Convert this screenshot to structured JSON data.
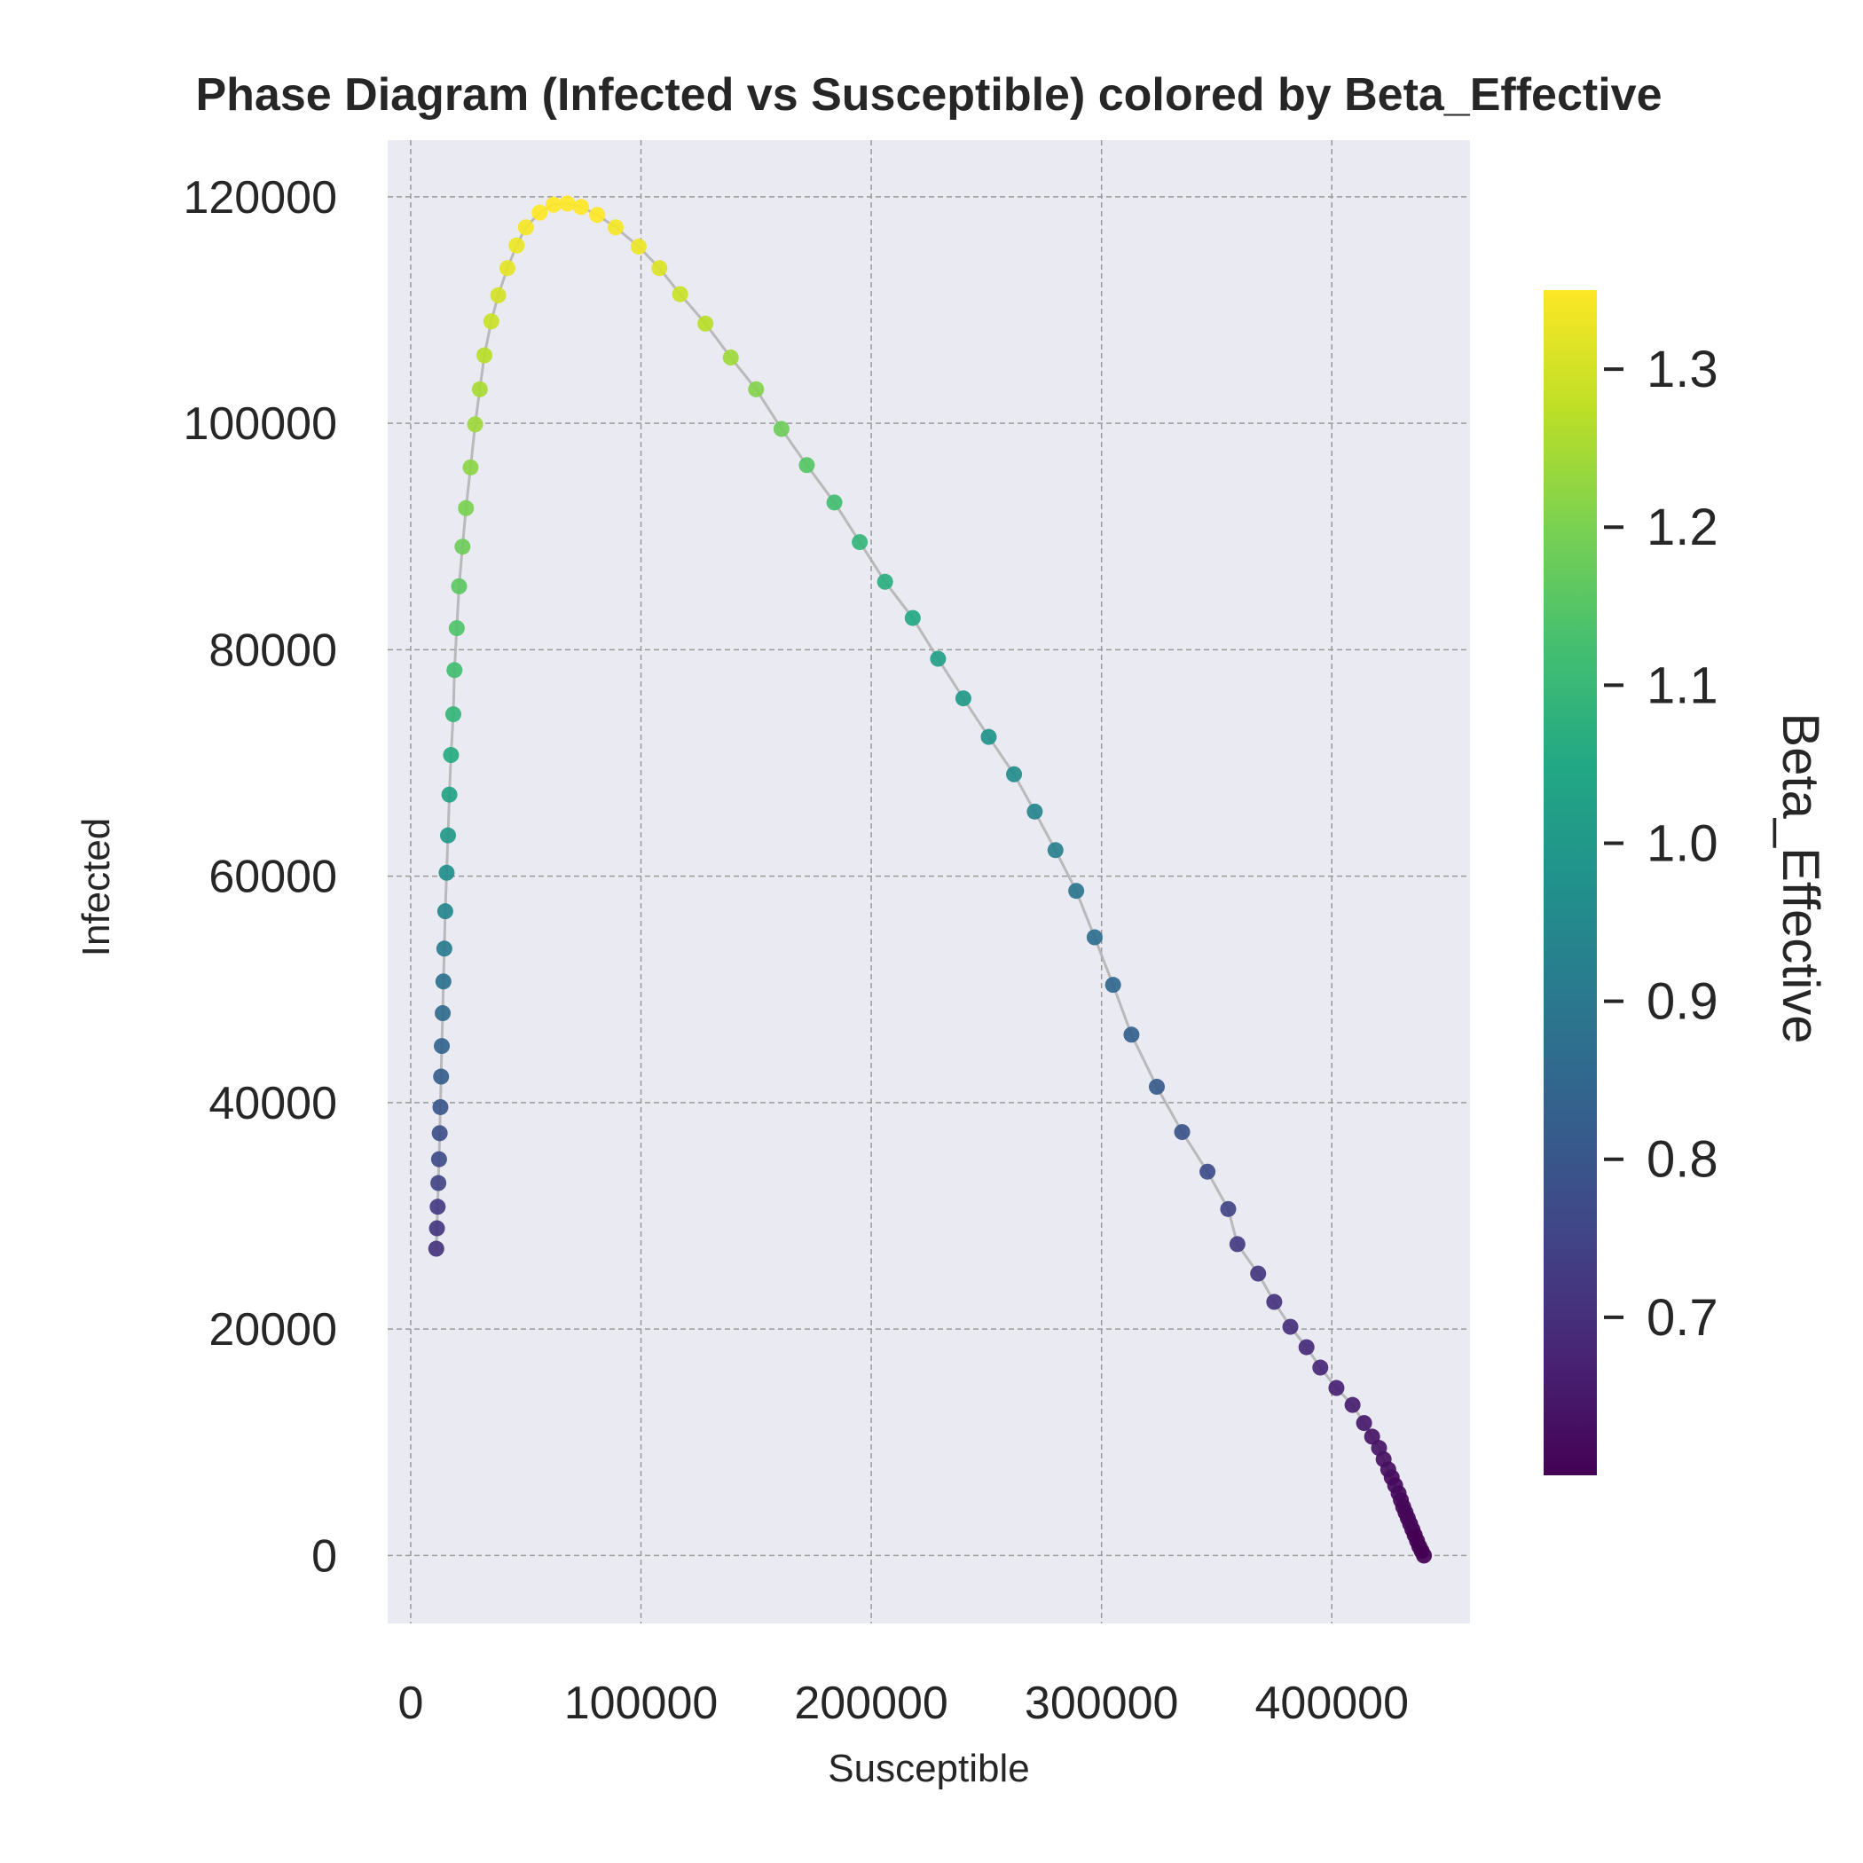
{
  "chart_data": {
    "type": "scatter",
    "title": "Phase Diagram (Infected vs Susceptible) colored by Beta_Effective",
    "xlabel": "Susceptible",
    "ylabel": "Infected",
    "xlim": [
      -10000,
      460000
    ],
    "ylim": [
      -6000,
      125000
    ],
    "xticks": [
      0,
      100000,
      200000,
      300000,
      400000
    ],
    "yticks": [
      0,
      20000,
      40000,
      60000,
      80000,
      100000,
      120000
    ],
    "grid": true,
    "line_color": "#b0b0b0",
    "colormap": "viridis",
    "colorbar": {
      "label": "Beta_Effective",
      "range": [
        0.6,
        1.35
      ],
      "ticks": [
        0.7,
        0.8,
        0.9,
        1.0,
        1.1,
        1.2,
        1.3
      ],
      "tick_labels": [
        "0.7",
        "0.8",
        "0.9",
        "1.0",
        "1.1",
        "1.2",
        "1.3"
      ]
    },
    "points": [
      [
        440000,
        0,
        0.6
      ],
      [
        439000,
        400,
        0.6
      ],
      [
        438000,
        800,
        0.6
      ],
      [
        437000,
        1300,
        0.6
      ],
      [
        436000,
        1800,
        0.6
      ],
      [
        435000,
        2300,
        0.6
      ],
      [
        434000,
        2800,
        0.61
      ],
      [
        433000,
        3300,
        0.61
      ],
      [
        432000,
        3800,
        0.61
      ],
      [
        431000,
        4300,
        0.61
      ],
      [
        430000,
        4900,
        0.61
      ],
      [
        429000,
        5500,
        0.62
      ],
      [
        427500,
        6200,
        0.62
      ],
      [
        426000,
        6900,
        0.62
      ],
      [
        424500,
        7600,
        0.63
      ],
      [
        422500,
        8500,
        0.63
      ],
      [
        420500,
        9500,
        0.64
      ],
      [
        417500,
        10500,
        0.64
      ],
      [
        414000,
        11700,
        0.65
      ],
      [
        409000,
        13300,
        0.66
      ],
      [
        402000,
        14800,
        0.67
      ],
      [
        395000,
        16600,
        0.68
      ],
      [
        389000,
        18400,
        0.69
      ],
      [
        382000,
        20200,
        0.7
      ],
      [
        375000,
        22400,
        0.71
      ],
      [
        368000,
        24900,
        0.72
      ],
      [
        359000,
        27500,
        0.73
      ],
      [
        355000,
        30600,
        0.75
      ],
      [
        346000,
        33900,
        0.77
      ],
      [
        335000,
        37400,
        0.79
      ],
      [
        324000,
        41400,
        0.81
      ],
      [
        313000,
        46000,
        0.83
      ],
      [
        305000,
        50400,
        0.85
      ],
      [
        297000,
        54600,
        0.87
      ],
      [
        289000,
        58700,
        0.89
      ],
      [
        280000,
        62300,
        0.92
      ],
      [
        271000,
        65700,
        0.94
      ],
      [
        262000,
        69000,
        0.96
      ],
      [
        251000,
        72300,
        0.98
      ],
      [
        240000,
        75700,
        1.0
      ],
      [
        229000,
        79200,
        1.02
      ],
      [
        218000,
        82800,
        1.05
      ],
      [
        206000,
        86000,
        1.07
      ],
      [
        195000,
        89500,
        1.09
      ],
      [
        184000,
        93000,
        1.12
      ],
      [
        172000,
        96300,
        1.15
      ],
      [
        161000,
        99500,
        1.18
      ],
      [
        150000,
        103000,
        1.21
      ],
      [
        139000,
        105800,
        1.24
      ],
      [
        128000,
        108800,
        1.27
      ],
      [
        117000,
        111400,
        1.29
      ],
      [
        108000,
        113700,
        1.31
      ],
      [
        99000,
        115600,
        1.33
      ],
      [
        89000,
        117300,
        1.34
      ],
      [
        81000,
        118400,
        1.35
      ],
      [
        74000,
        119100,
        1.35
      ],
      [
        68000,
        119400,
        1.35
      ],
      [
        62000,
        119300,
        1.35
      ],
      [
        56000,
        118600,
        1.35
      ],
      [
        50000,
        117300,
        1.34
      ],
      [
        46000,
        115700,
        1.33
      ],
      [
        42000,
        113700,
        1.32
      ],
      [
        38000,
        111300,
        1.3
      ],
      [
        35000,
        109000,
        1.29
      ],
      [
        32000,
        106000,
        1.27
      ],
      [
        30000,
        103000,
        1.25
      ],
      [
        28000,
        99900,
        1.24
      ],
      [
        26000,
        96100,
        1.22
      ],
      [
        24000,
        92500,
        1.2
      ],
      [
        22500,
        89100,
        1.18
      ],
      [
        21000,
        85600,
        1.16
      ],
      [
        20000,
        81900,
        1.14
      ],
      [
        19000,
        78200,
        1.12
      ],
      [
        18500,
        74300,
        1.09
      ],
      [
        17500,
        70700,
        1.06
      ],
      [
        16800,
        67200,
        1.03
      ],
      [
        16200,
        63600,
        1.0
      ],
      [
        15600,
        60300,
        0.97
      ],
      [
        15000,
        56900,
        0.94
      ],
      [
        14600,
        53600,
        0.91
      ],
      [
        14200,
        50700,
        0.88
      ],
      [
        13900,
        47900,
        0.86
      ],
      [
        13500,
        45000,
        0.84
      ],
      [
        13200,
        42300,
        0.82
      ],
      [
        12900,
        39600,
        0.8
      ],
      [
        12600,
        37300,
        0.78
      ],
      [
        12300,
        35000,
        0.77
      ],
      [
        12000,
        32900,
        0.75
      ],
      [
        11700,
        30800,
        0.73
      ],
      [
        11400,
        28900,
        0.72
      ],
      [
        11100,
        27100,
        0.71
      ]
    ]
  }
}
